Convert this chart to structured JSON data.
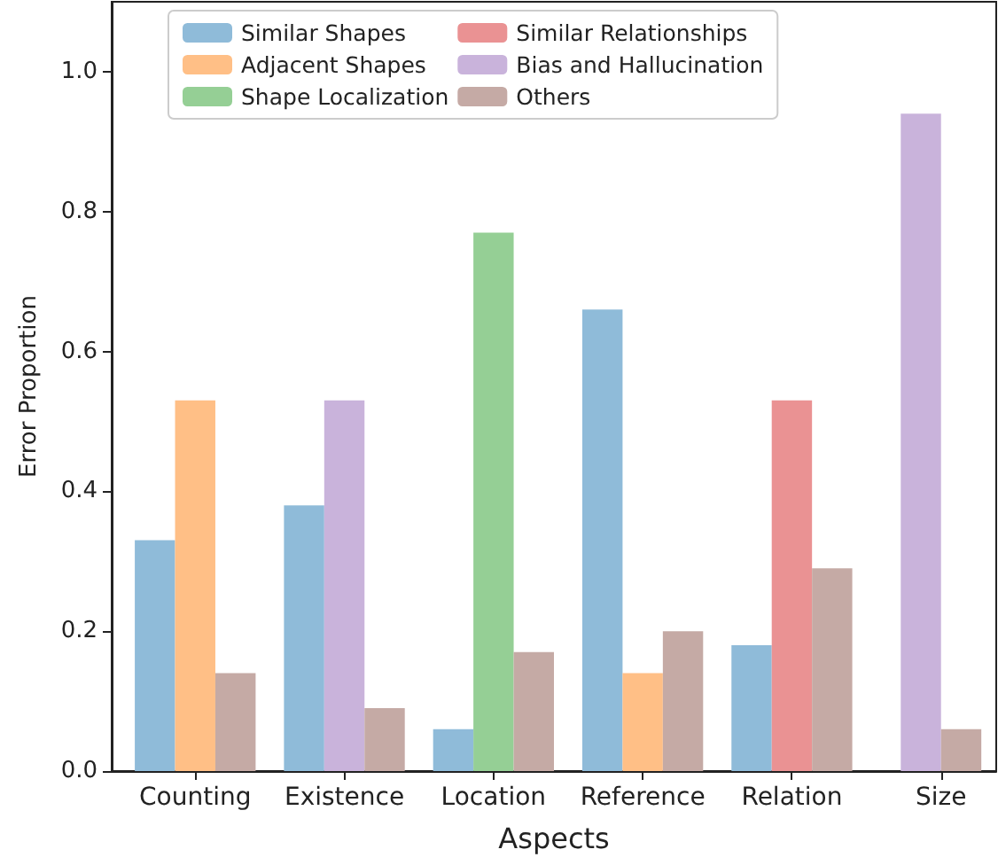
{
  "chart_data": {
    "type": "bar",
    "xlabel": "Aspects",
    "ylabel": "Error Proportion",
    "categories": [
      "Counting",
      "Existence",
      "Location",
      "Reference",
      "Relation",
      "Size"
    ],
    "series": [
      {
        "name": "Similar Shapes",
        "color": "#8fbbd9",
        "values": [
          0.33,
          0.38,
          0.06,
          0.66,
          0.18,
          null
        ]
      },
      {
        "name": "Adjacent Shapes",
        "color": "#ffbf86",
        "values": [
          0.53,
          null,
          null,
          0.14,
          null,
          null
        ]
      },
      {
        "name": "Shape Localization",
        "color": "#95cf95",
        "values": [
          null,
          null,
          0.77,
          null,
          null,
          null
        ]
      },
      {
        "name": "Similar Relationships",
        "color": "#ea9293",
        "values": [
          null,
          null,
          null,
          null,
          0.53,
          null
        ]
      },
      {
        "name": "Bias and Hallucination",
        "color": "#c9b3db",
        "values": [
          null,
          0.53,
          null,
          null,
          null,
          0.94
        ]
      },
      {
        "name": "Others",
        "color": "#c5aaa5",
        "values": [
          0.14,
          0.09,
          0.17,
          0.2,
          0.29,
          0.06
        ]
      }
    ],
    "ylim": [
      0,
      1.1
    ],
    "yticks": [
      {
        "value": 0,
        "label": "0.0"
      },
      0.2,
      0.4,
      0.6,
      0.8,
      {
        "value": 1,
        "label": "1.0"
      }
    ],
    "grid": false,
    "legend": "top"
  }
}
